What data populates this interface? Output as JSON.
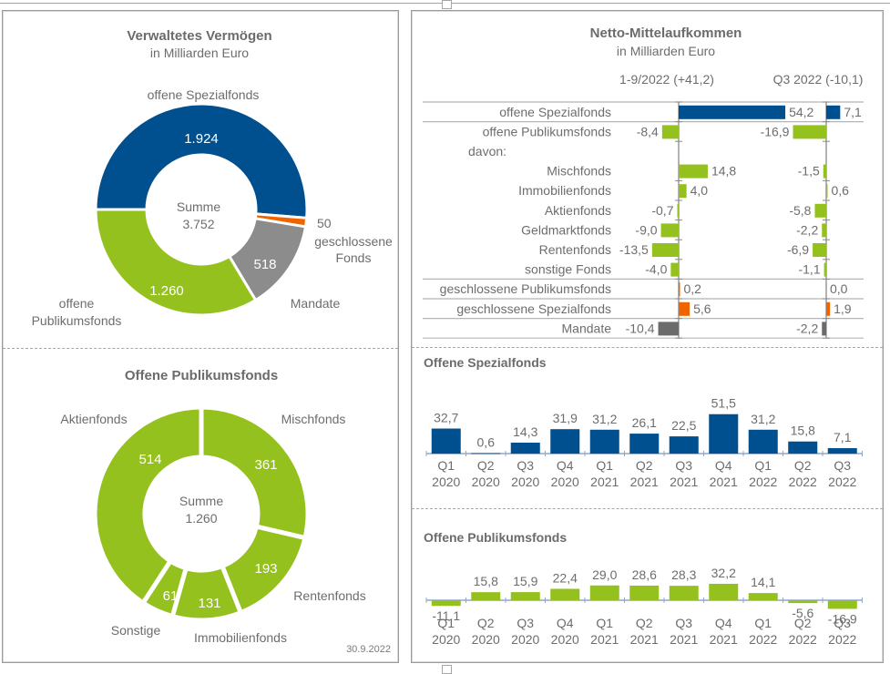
{
  "colors": {
    "blue": "#004f8f",
    "green": "#95c11f",
    "orange": "#f06400",
    "gray": "#8c8c8c",
    "dark_gray": "#6b6b6b",
    "text": "#6d6d6d",
    "axis": "#8a8a8a"
  },
  "chart_data": [
    {
      "id": "verwaltetes-vermoegen",
      "type": "pie",
      "title": "Verwaltetes Vermögen",
      "subtitle": "in Milliarden Euro",
      "center_label": "Summe",
      "center_value": "3.752",
      "slices": [
        {
          "label": "offene Spezialfonds",
          "value": 1924,
          "display": "1.924",
          "color": "#004f8f"
        },
        {
          "label": "geschlossene Fonds",
          "value": 50,
          "display": "50",
          "color": "#f06400"
        },
        {
          "label": "Mandate",
          "value": 518,
          "display": "518",
          "color": "#8c8c8c"
        },
        {
          "label": "offene Publikumsfonds",
          "value": 1260,
          "display": "1.260",
          "color": "#95c11f"
        }
      ],
      "label_lines": {
        "offene Spezialfonds": [
          "offene Spezialfonds"
        ],
        "geschlossene Fonds": [
          "geschlossene",
          "Fonds"
        ],
        "Mandate": [
          "Mandate"
        ],
        "offene Publikumsfonds": [
          "offene",
          "Publikumsfonds"
        ]
      }
    },
    {
      "id": "offene-publikumsfonds-bestand",
      "type": "pie",
      "title": "Offene Publikumsfonds",
      "center_label": "Summe",
      "center_value": "1.260",
      "footnote": "30.9.2022",
      "slices": [
        {
          "label": "Mischfonds",
          "value": 361,
          "display": "361",
          "color": "#95c11f"
        },
        {
          "label": "Rentenfonds",
          "value": 193,
          "display": "193",
          "color": "#95c11f"
        },
        {
          "label": "Immobilienfonds",
          "value": 131,
          "display": "131",
          "color": "#95c11f"
        },
        {
          "label": "Sonstige",
          "value": 61,
          "display": "61",
          "color": "#95c11f"
        },
        {
          "label": "Aktienfonds",
          "value": 514,
          "display": "514",
          "color": "#95c11f"
        }
      ]
    },
    {
      "id": "netto-mittelaufkommen",
      "type": "bar",
      "orientation": "horizontal",
      "title": "Netto-Mittelaufkommen",
      "subtitle": "in Milliarden Euro",
      "series": [
        {
          "name": "1-9/2022 (+41,2)",
          "values": [
            54.2,
            -8.4,
            null,
            14.8,
            4.0,
            -0.7,
            -9.0,
            -13.5,
            -4.0,
            0.2,
            5.6,
            -10.4
          ],
          "labels": [
            "54,2",
            "-8,4",
            "",
            "14,8",
            "4,0",
            "-0,7",
            "-9,0",
            "-13,5",
            "-4,0",
            "0,2",
            "5,6",
            "-10,4"
          ]
        },
        {
          "name": "Q3 2022 (-10,1)",
          "values": [
            7.1,
            -16.9,
            null,
            -1.5,
            0.6,
            -5.8,
            -2.2,
            -6.9,
            -1.1,
            0.0,
            1.9,
            -2.2
          ],
          "labels": [
            "7,1",
            "-16,9",
            "",
            "-1,5",
            "0,6",
            "-5,8",
            "-2,2",
            "-6,9",
            "-1,1",
            "0,0",
            "1,9",
            "-2,2"
          ]
        }
      ],
      "categories": [
        "offene Spezialfonds",
        "offene Publikumsfonds",
        "davon:",
        "Mischfonds",
        "Immobilienfonds",
        "Aktienfonds",
        "Geldmarktfonds",
        "Rentenfonds",
        "sonstige Fonds",
        "geschlossene Publikumsfonds",
        "geschlossene Spezialfonds",
        "Mandate"
      ],
      "category_colors": [
        "#004f8f",
        "#95c11f",
        "",
        "#95c11f",
        "#95c11f",
        "#95c11f",
        "#95c11f",
        "#95c11f",
        "#95c11f",
        "#f06400",
        "#f06400",
        "#6b6b6b"
      ]
    },
    {
      "id": "offene-spezialfonds-quartale",
      "type": "bar",
      "title": "Offene Spezialfonds",
      "categories": [
        "Q1 2020",
        "Q2 2020",
        "Q3 2020",
        "Q4 2020",
        "Q1 2021",
        "Q2 2021",
        "Q3 2021",
        "Q4 2021",
        "Q1 2022",
        "Q2 2022",
        "Q3 2022"
      ],
      "values": [
        32.7,
        0.6,
        14.3,
        31.9,
        31.2,
        26.1,
        22.5,
        51.5,
        31.2,
        15.8,
        7.1
      ],
      "labels": [
        "32,7",
        "0,6",
        "14,3",
        "31,9",
        "31,2",
        "26,1",
        "22,5",
        "51,5",
        "31,2",
        "15,8",
        "7,1"
      ],
      "color": "#004f8f"
    },
    {
      "id": "offene-publikumsfonds-quartale",
      "type": "bar",
      "title": "Offene Publikumsfonds",
      "categories": [
        "Q1 2020",
        "Q2 2020",
        "Q3 2020",
        "Q4 2020",
        "Q1 2021",
        "Q2 2021",
        "Q3 2021",
        "Q4 2021",
        "Q1 2022",
        "Q2 2022",
        "Q3 2022"
      ],
      "values": [
        -11.1,
        15.8,
        15.9,
        22.4,
        29.0,
        28.6,
        28.3,
        32.2,
        14.1,
        -5.6,
        -16.9
      ],
      "labels": [
        "-11,1",
        "15,8",
        "15,9",
        "22,4",
        "29,0",
        "28,6",
        "28,3",
        "32,2",
        "14,1",
        "-5,6",
        "-16,9"
      ],
      "color": "#95c11f"
    }
  ],
  "quarter_labels": {
    "q": [
      "Q1",
      "Q2",
      "Q3",
      "Q4",
      "Q1",
      "Q2",
      "Q3",
      "Q4",
      "Q1",
      "Q2",
      "Q3"
    ],
    "y": [
      "2020",
      "2020",
      "2020",
      "2020",
      "2021",
      "2021",
      "2021",
      "2021",
      "2022",
      "2022",
      "2022"
    ]
  }
}
